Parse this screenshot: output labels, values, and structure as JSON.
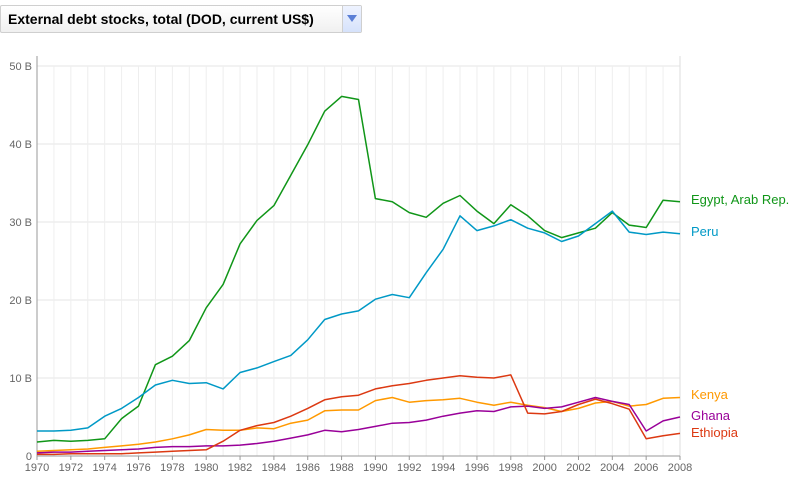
{
  "selector": {
    "label": "External debt stocks, total (DOD, current US$)",
    "icon": "chevron-down-icon"
  },
  "chart_data": {
    "type": "line",
    "title": "",
    "xlabel": "",
    "ylabel": "",
    "xlim": [
      1970,
      2008
    ],
    "ylim": [
      0,
      50
    ],
    "x_ticks": [
      "1970",
      "1972",
      "1974",
      "1976",
      "1978",
      "1980",
      "1982",
      "1984",
      "1986",
      "1988",
      "1990",
      "1992",
      "1994",
      "1996",
      "1998",
      "2000",
      "2002",
      "2004",
      "2006",
      "2008"
    ],
    "y_ticks": [
      {
        "value": 0,
        "label": "0"
      },
      {
        "value": 10,
        "label": "10 B"
      },
      {
        "value": 20,
        "label": "20 B"
      },
      {
        "value": 30,
        "label": "30 B"
      },
      {
        "value": 40,
        "label": "40 B"
      },
      {
        "value": 50,
        "label": "50 B"
      }
    ],
    "grid": true,
    "unit": "billions of current US$",
    "x": [
      1970,
      1971,
      1972,
      1973,
      1974,
      1975,
      1976,
      1977,
      1978,
      1979,
      1980,
      1981,
      1982,
      1983,
      1984,
      1985,
      1986,
      1987,
      1988,
      1989,
      1990,
      1991,
      1992,
      1993,
      1994,
      1995,
      1996,
      1997,
      1998,
      1999,
      2000,
      2001,
      2002,
      2003,
      2004,
      2005,
      2006,
      2007,
      2008
    ],
    "series": [
      {
        "name": "Egypt, Arab Rep.",
        "color": "#109618",
        "values": [
          1.8,
          2.0,
          1.9,
          2.0,
          2.2,
          4.8,
          6.4,
          11.7,
          12.8,
          14.8,
          19.0,
          22.0,
          27.2,
          30.2,
          32.1,
          36.0,
          39.9,
          44.2,
          46.1,
          45.7,
          33.0,
          32.6,
          31.2,
          30.6,
          32.4,
          33.4,
          31.4,
          29.8,
          32.2,
          30.8,
          28.9,
          28.0,
          28.6,
          29.2,
          31.2,
          29.6,
          29.3,
          32.8,
          32.6
        ]
      },
      {
        "name": "Peru",
        "color": "#0099c6",
        "values": [
          3.2,
          3.2,
          3.3,
          3.6,
          5.1,
          6.1,
          7.5,
          9.1,
          9.7,
          9.3,
          9.4,
          8.6,
          10.7,
          11.3,
          12.1,
          12.9,
          14.9,
          17.5,
          18.2,
          18.6,
          20.1,
          20.7,
          20.3,
          23.5,
          26.5,
          30.8,
          28.9,
          29.5,
          30.3,
          29.2,
          28.6,
          27.5,
          28.2,
          29.8,
          31.4,
          28.7,
          28.4,
          28.7,
          28.5
        ]
      },
      {
        "name": "Kenya",
        "color": "#ff9900",
        "values": [
          0.6,
          0.7,
          0.8,
          0.9,
          1.1,
          1.3,
          1.5,
          1.8,
          2.2,
          2.7,
          3.4,
          3.3,
          3.3,
          3.6,
          3.5,
          4.2,
          4.6,
          5.8,
          5.9,
          5.9,
          7.1,
          7.5,
          6.9,
          7.1,
          7.2,
          7.4,
          6.9,
          6.5,
          6.9,
          6.5,
          6.2,
          5.7,
          6.1,
          6.8,
          7.0,
          6.4,
          6.6,
          7.4,
          7.5
        ]
      },
      {
        "name": "Ghana",
        "color": "#990099",
        "values": [
          0.4,
          0.5,
          0.5,
          0.6,
          0.7,
          0.8,
          0.9,
          1.1,
          1.2,
          1.2,
          1.3,
          1.3,
          1.4,
          1.6,
          1.9,
          2.3,
          2.7,
          3.3,
          3.1,
          3.4,
          3.8,
          4.2,
          4.3,
          4.6,
          5.1,
          5.5,
          5.8,
          5.7,
          6.3,
          6.4,
          6.1,
          6.3,
          6.9,
          7.5,
          7.0,
          6.6,
          3.2,
          4.5,
          5.0
        ]
      },
      {
        "name": "Ethiopia",
        "color": "#dc3912",
        "values": [
          0.2,
          0.2,
          0.3,
          0.3,
          0.3,
          0.3,
          0.4,
          0.5,
          0.6,
          0.7,
          0.8,
          1.9,
          3.3,
          3.9,
          4.3,
          5.1,
          6.1,
          7.2,
          7.6,
          7.8,
          8.6,
          9.0,
          9.3,
          9.7,
          10.0,
          10.3,
          10.1,
          10.0,
          10.4,
          5.5,
          5.4,
          5.7,
          6.6,
          7.3,
          6.7,
          6.0,
          2.2,
          2.6,
          2.9
        ]
      }
    ]
  }
}
